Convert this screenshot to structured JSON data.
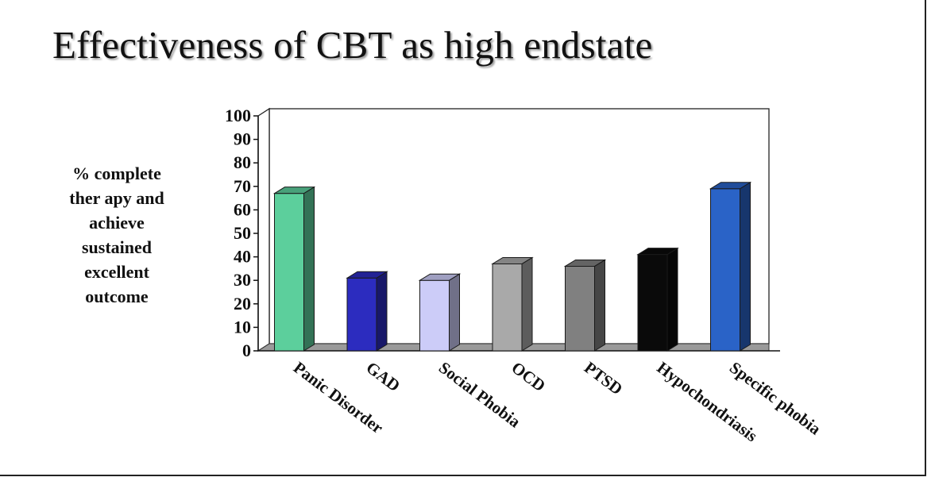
{
  "slide": {
    "title": "Effectiveness of CBT as high endstate"
  },
  "chart_data": {
    "type": "bar",
    "title": "Effectiveness of CBT as high endstate",
    "ylabel_lines": [
      "% complete",
      "ther apy and",
      "achieve",
      "sustained",
      "excellent",
      "outcome"
    ],
    "xlabel": "",
    "ylim": [
      0,
      100
    ],
    "yticks": [
      0,
      10,
      20,
      30,
      40,
      50,
      60,
      70,
      80,
      90,
      100
    ],
    "grid": false,
    "categories": [
      "Panic Disorder",
      "GAD",
      "Social Phobia",
      "OCD",
      "PTSD",
      "Hypochondriasis",
      "Specific phobia"
    ],
    "values": [
      67,
      31,
      30,
      37,
      36,
      41,
      69
    ],
    "colors": [
      "#5ccf9c",
      "#2c2cbf",
      "#ccccf8",
      "#a9a9a9",
      "#808080",
      "#0a0a0a",
      "#2a63c7"
    ]
  }
}
